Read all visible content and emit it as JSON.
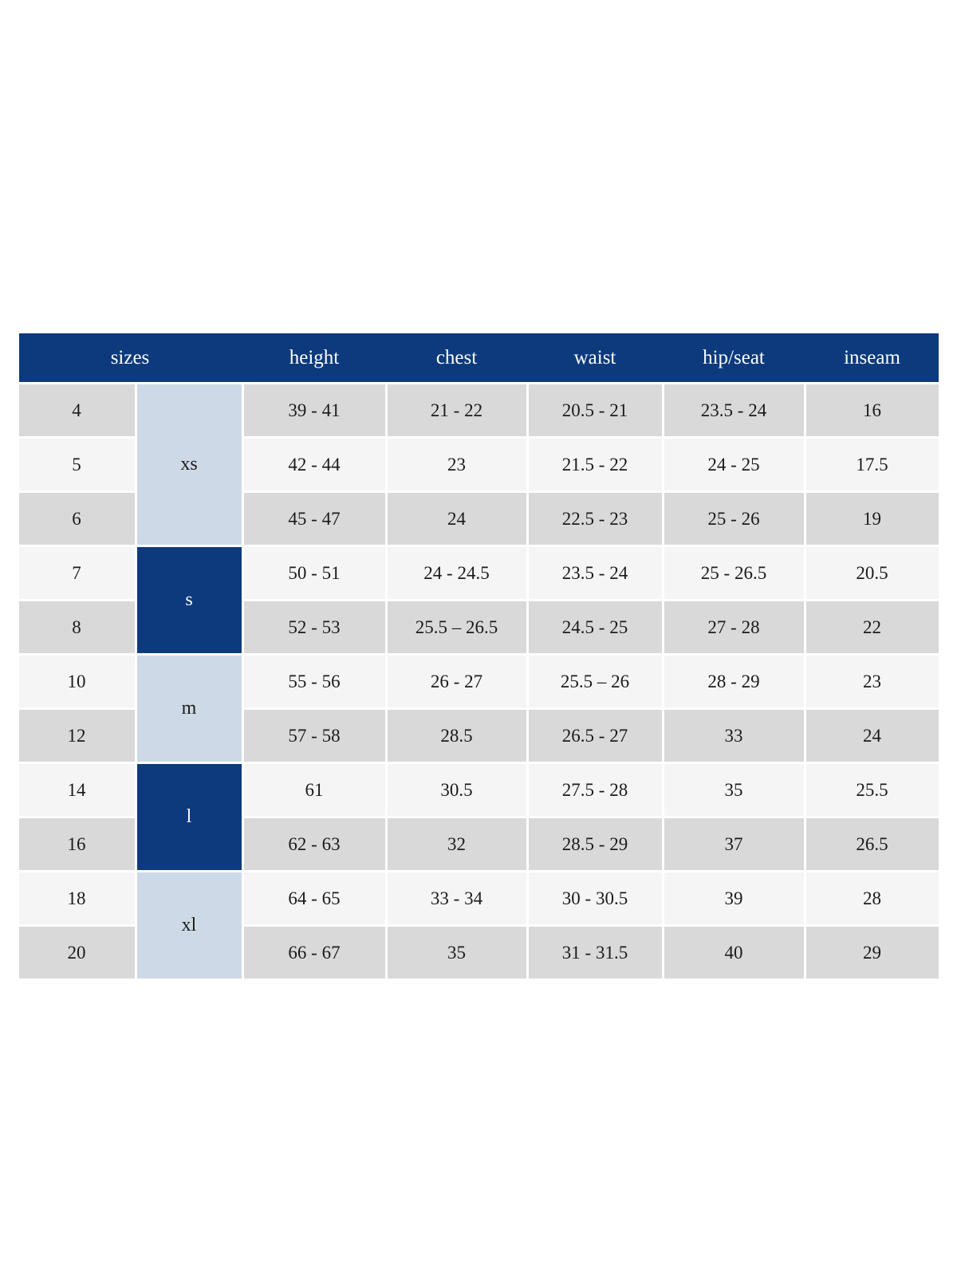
{
  "chart_data": {
    "type": "table",
    "header": {
      "sizes_label": "sizes",
      "columns": [
        "height",
        "chest",
        "waist",
        "hip/seat",
        "inseam"
      ]
    },
    "size_groups": [
      {
        "label": "xs",
        "rows_spanned": 3,
        "variant": "light-blue"
      },
      {
        "label": "s",
        "rows_spanned": 2,
        "variant": "navy"
      },
      {
        "label": "m",
        "rows_spanned": 2,
        "variant": "light-blue"
      },
      {
        "label": "l",
        "rows_spanned": 2,
        "variant": "navy"
      },
      {
        "label": "xl",
        "rows_spanned": 2,
        "variant": "light-blue"
      }
    ],
    "rows": [
      {
        "size": "4",
        "height": "39 - 41",
        "chest": "21 - 22",
        "waist": "20.5 - 21",
        "hip_seat": "23.5 - 24",
        "inseam": "16"
      },
      {
        "size": "5",
        "height": "42 - 44",
        "chest": "23",
        "waist": "21.5 - 22",
        "hip_seat": "24 - 25",
        "inseam": "17.5"
      },
      {
        "size": "6",
        "height": "45 - 47",
        "chest": "24",
        "waist": "22.5 - 23",
        "hip_seat": "25 - 26",
        "inseam": "19"
      },
      {
        "size": "7",
        "height": "50 - 51",
        "chest": "24 - 24.5",
        "waist": "23.5 - 24",
        "hip_seat": "25 - 26.5",
        "inseam": "20.5"
      },
      {
        "size": "8",
        "height": "52 - 53",
        "chest": "25.5 – 26.5",
        "waist": "24.5 - 25",
        "hip_seat": "27 - 28",
        "inseam": "22"
      },
      {
        "size": "10",
        "height": "55 - 56",
        "chest": "26 - 27",
        "waist": "25.5 – 26",
        "hip_seat": "28 - 29",
        "inseam": "23"
      },
      {
        "size": "12",
        "height": "57 - 58",
        "chest": "28.5",
        "waist": "26.5 - 27",
        "hip_seat": "33",
        "inseam": "24"
      },
      {
        "size": "14",
        "height": "61",
        "chest": "30.5",
        "waist": "27.5 - 28",
        "hip_seat": "35",
        "inseam": "25.5"
      },
      {
        "size": "16",
        "height": "62 - 63",
        "chest": "32",
        "waist": "28.5 - 29",
        "hip_seat": "37",
        "inseam": "26.5"
      },
      {
        "size": "18",
        "height": "64 - 65",
        "chest": "33 - 34",
        "waist": "30 - 30.5",
        "hip_seat": "39",
        "inseam": "28"
      },
      {
        "size": "20",
        "height": "66 - 67",
        "chest": "35",
        "waist": "31 - 31.5",
        "hip_seat": "40",
        "inseam": "29"
      }
    ],
    "colors": {
      "header_navy": "#0d3a7c",
      "letter_light_blue": "#cdd9e6",
      "row_gray": "#d9d9d9",
      "row_light": "#f5f5f5",
      "body_text": "#1b1b1b",
      "header_text": "#fdfdfd"
    },
    "layout_hints": {
      "grid": "off",
      "legend": "none"
    }
  }
}
